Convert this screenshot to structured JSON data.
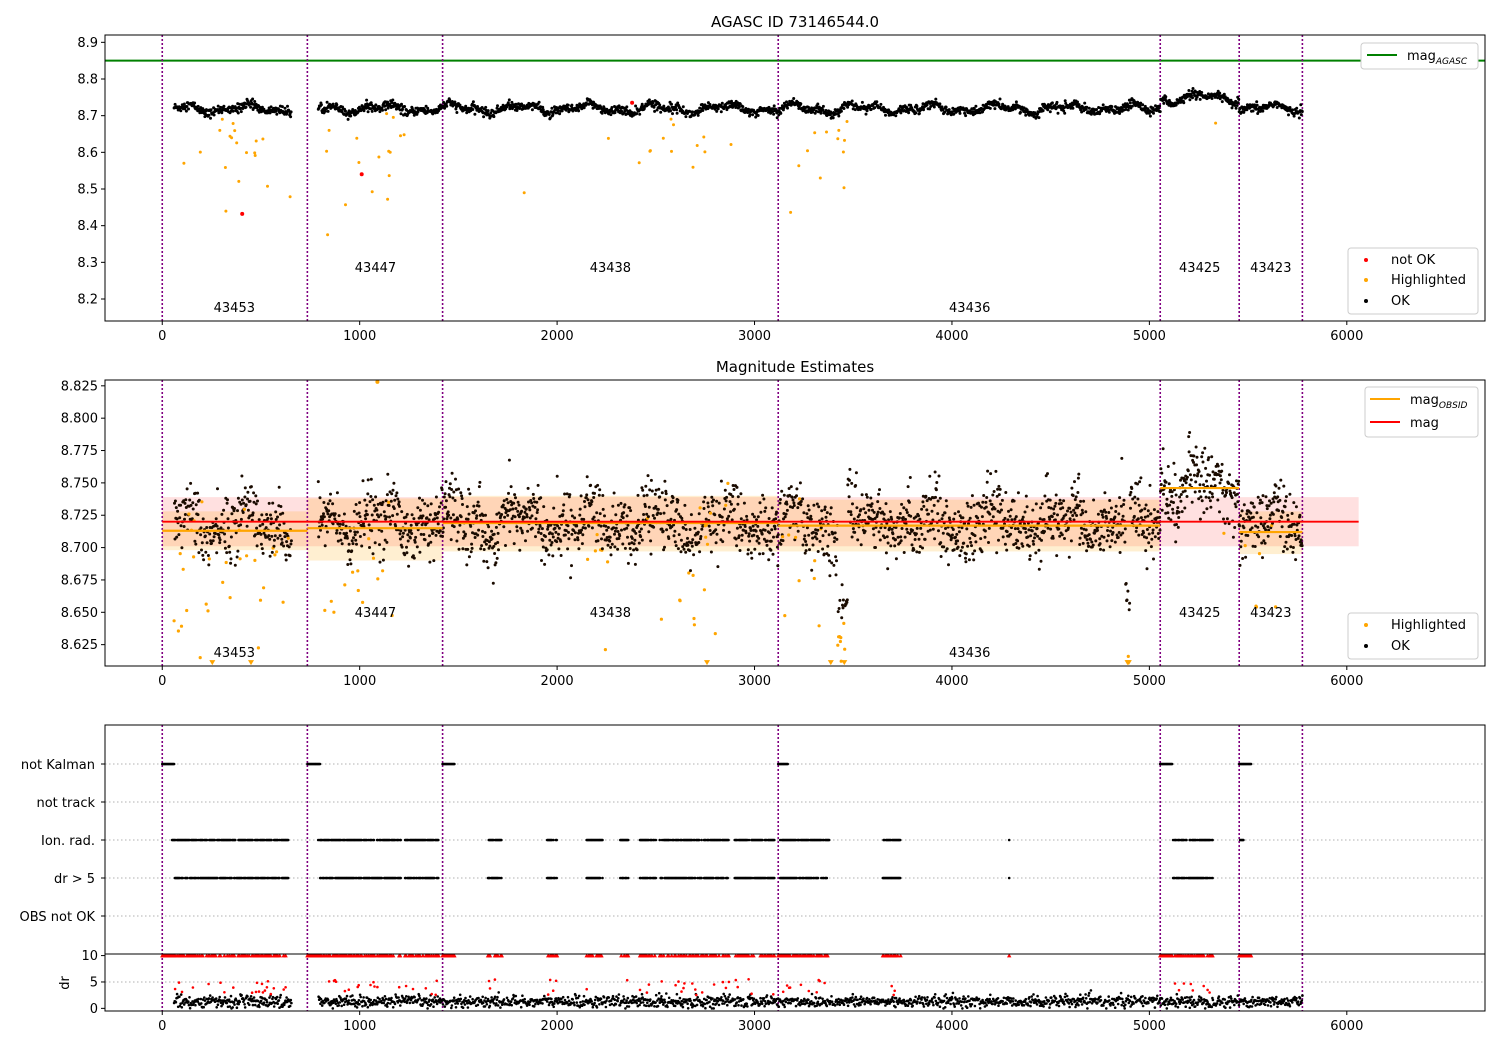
{
  "colors": {
    "ok": "#000000",
    "highlighted": "#ffa500",
    "not_ok": "#ff0000",
    "agasc_line": "#008000",
    "mag_line": "#ff0000",
    "mag_obsid_line": "#ffa500",
    "obs_boundary": "#800080"
  },
  "obs_boundaries": [
    0,
    735,
    1420,
    3120,
    5055,
    5455,
    5775
  ],
  "obsids": [
    {
      "id": "43453",
      "x": 365,
      "level": "low"
    },
    {
      "id": "43447",
      "x": 1080,
      "level": "high"
    },
    {
      "id": "43438",
      "x": 2270,
      "level": "high"
    },
    {
      "id": "43436",
      "x": 4090,
      "level": "low"
    },
    {
      "id": "43425",
      "x": 5255,
      "level": "high"
    },
    {
      "id": "43423",
      "x": 5615,
      "level": "high"
    }
  ],
  "chart_data": [
    {
      "type": "scatter",
      "title": "AGASC ID 73146544.0",
      "xlim": [
        -290,
        6700
      ],
      "ylim": [
        8.14,
        8.92
      ],
      "x_ticks": [
        0,
        1000,
        2000,
        3000,
        4000,
        5000,
        6000
      ],
      "y_ticks": [
        8.2,
        8.3,
        8.4,
        8.5,
        8.6,
        8.7,
        8.8,
        8.9
      ],
      "mag_agasc": 8.85,
      "legend_upper": [
        {
          "label": "mag",
          "sub": "AGASC",
          "color": "#008000"
        }
      ],
      "legend_lower": [
        {
          "label": "not OK",
          "color": "#ff0000"
        },
        {
          "label": "Highlighted",
          "color": "#ffa500"
        },
        {
          "label": "OK",
          "color": "#000000"
        }
      ],
      "series": [
        {
          "name": "OK",
          "color": "#000000"
        },
        {
          "name": "Highlighted",
          "color": "#ffa500"
        },
        {
          "name": "not OK",
          "color": "#ff0000"
        }
      ]
    },
    {
      "type": "scatter",
      "title": "Magnitude Estimates",
      "xlim": [
        -290,
        6700
      ],
      "ylim": [
        8.6085,
        8.8295
      ],
      "x_ticks": [
        0,
        1000,
        2000,
        3000,
        4000,
        5000,
        6000
      ],
      "y_ticks": [
        8.625,
        8.65,
        8.675,
        8.7,
        8.725,
        8.75,
        8.775,
        8.8,
        8.825
      ],
      "mag": 8.72,
      "mag_band": [
        8.701,
        8.739
      ],
      "mag_obsid": [
        {
          "from": 0,
          "to": 735,
          "value": 8.713,
          "band": [
            8.698,
            8.728
          ]
        },
        {
          "from": 735,
          "to": 1420,
          "value": 8.715,
          "band": [
            8.69,
            8.738
          ]
        },
        {
          "from": 1420,
          "to": 3120,
          "value": 8.719,
          "band": [
            8.697,
            8.74
          ]
        },
        {
          "from": 3120,
          "to": 5055,
          "value": 8.717,
          "band": [
            8.697,
            8.737
          ]
        },
        {
          "from": 5055,
          "to": 5455,
          "value": 8.746,
          "band": [
            8.746,
            8.746
          ]
        },
        {
          "from": 5455,
          "to": 5775,
          "value": 8.712,
          "band": [
            8.695,
            8.728
          ]
        }
      ],
      "legend_upper": [
        {
          "label": "mag",
          "sub": "OBSID",
          "color": "#ffa500"
        },
        {
          "label": "mag",
          "sub": "",
          "color": "#ff0000"
        }
      ],
      "legend_lower": [
        {
          "label": "Highlighted",
          "color": "#ffa500"
        },
        {
          "label": "OK",
          "color": "#000000"
        }
      ],
      "series": [
        {
          "name": "OK",
          "color": "#000000"
        },
        {
          "name": "Highlighted",
          "color": "#ffa500"
        }
      ]
    },
    {
      "type": "scatter",
      "xlim": [
        -290,
        6700
      ],
      "categories": [
        "not Kalman",
        "not track",
        "Ion. rad.",
        "dr > 5",
        "OBS not OK"
      ],
      "flags": {
        "not Kalman": [
          [
            0,
            60
          ],
          [
            735,
            800
          ],
          [
            1420,
            1480
          ],
          [
            3120,
            3170
          ],
          [
            5055,
            5115
          ],
          [
            5455,
            5515
          ]
        ],
        "not track": [],
        "Ion. rad.": [
          [
            50,
            460
          ],
          [
            470,
            640
          ],
          [
            790,
            1010
          ],
          [
            1020,
            1210
          ],
          [
            1230,
            1400
          ],
          [
            1650,
            1720
          ],
          [
            1950,
            2000
          ],
          [
            2150,
            2230
          ],
          [
            2320,
            2360
          ],
          [
            2420,
            2500
          ],
          [
            2520,
            2870
          ],
          [
            2900,
            3100
          ],
          [
            3130,
            3380
          ],
          [
            3650,
            3740
          ],
          [
            4290,
            4290
          ],
          [
            5120,
            5320
          ],
          [
            5460,
            5480
          ]
        ],
        "dr > 5": [
          [
            60,
            460
          ],
          [
            470,
            640
          ],
          [
            800,
            1010
          ],
          [
            1020,
            1210
          ],
          [
            1230,
            1400
          ],
          [
            1650,
            1720
          ],
          [
            1950,
            2000
          ],
          [
            2150,
            2230
          ],
          [
            2320,
            2360
          ],
          [
            2420,
            2500
          ],
          [
            2520,
            2870
          ],
          [
            2900,
            3100
          ],
          [
            3130,
            3380
          ],
          [
            3650,
            3740
          ],
          [
            4290,
            4290
          ],
          [
            5120,
            5320
          ]
        ],
        "OBS not OK": []
      }
    },
    {
      "type": "scatter",
      "ylabel": "dr",
      "xlim": [
        -290,
        6700
      ],
      "ylim": [
        -0.5,
        10.3
      ],
      "x_ticks": [
        0,
        1000,
        2000,
        3000,
        4000,
        5000,
        6000
      ],
      "y_ticks": [
        0,
        5,
        10
      ],
      "clip_value": 10,
      "series": [
        {
          "name": "dr",
          "color": "#000000"
        },
        {
          "name": "dr > 5 (clipped)",
          "color": "#ff0000"
        }
      ]
    }
  ]
}
